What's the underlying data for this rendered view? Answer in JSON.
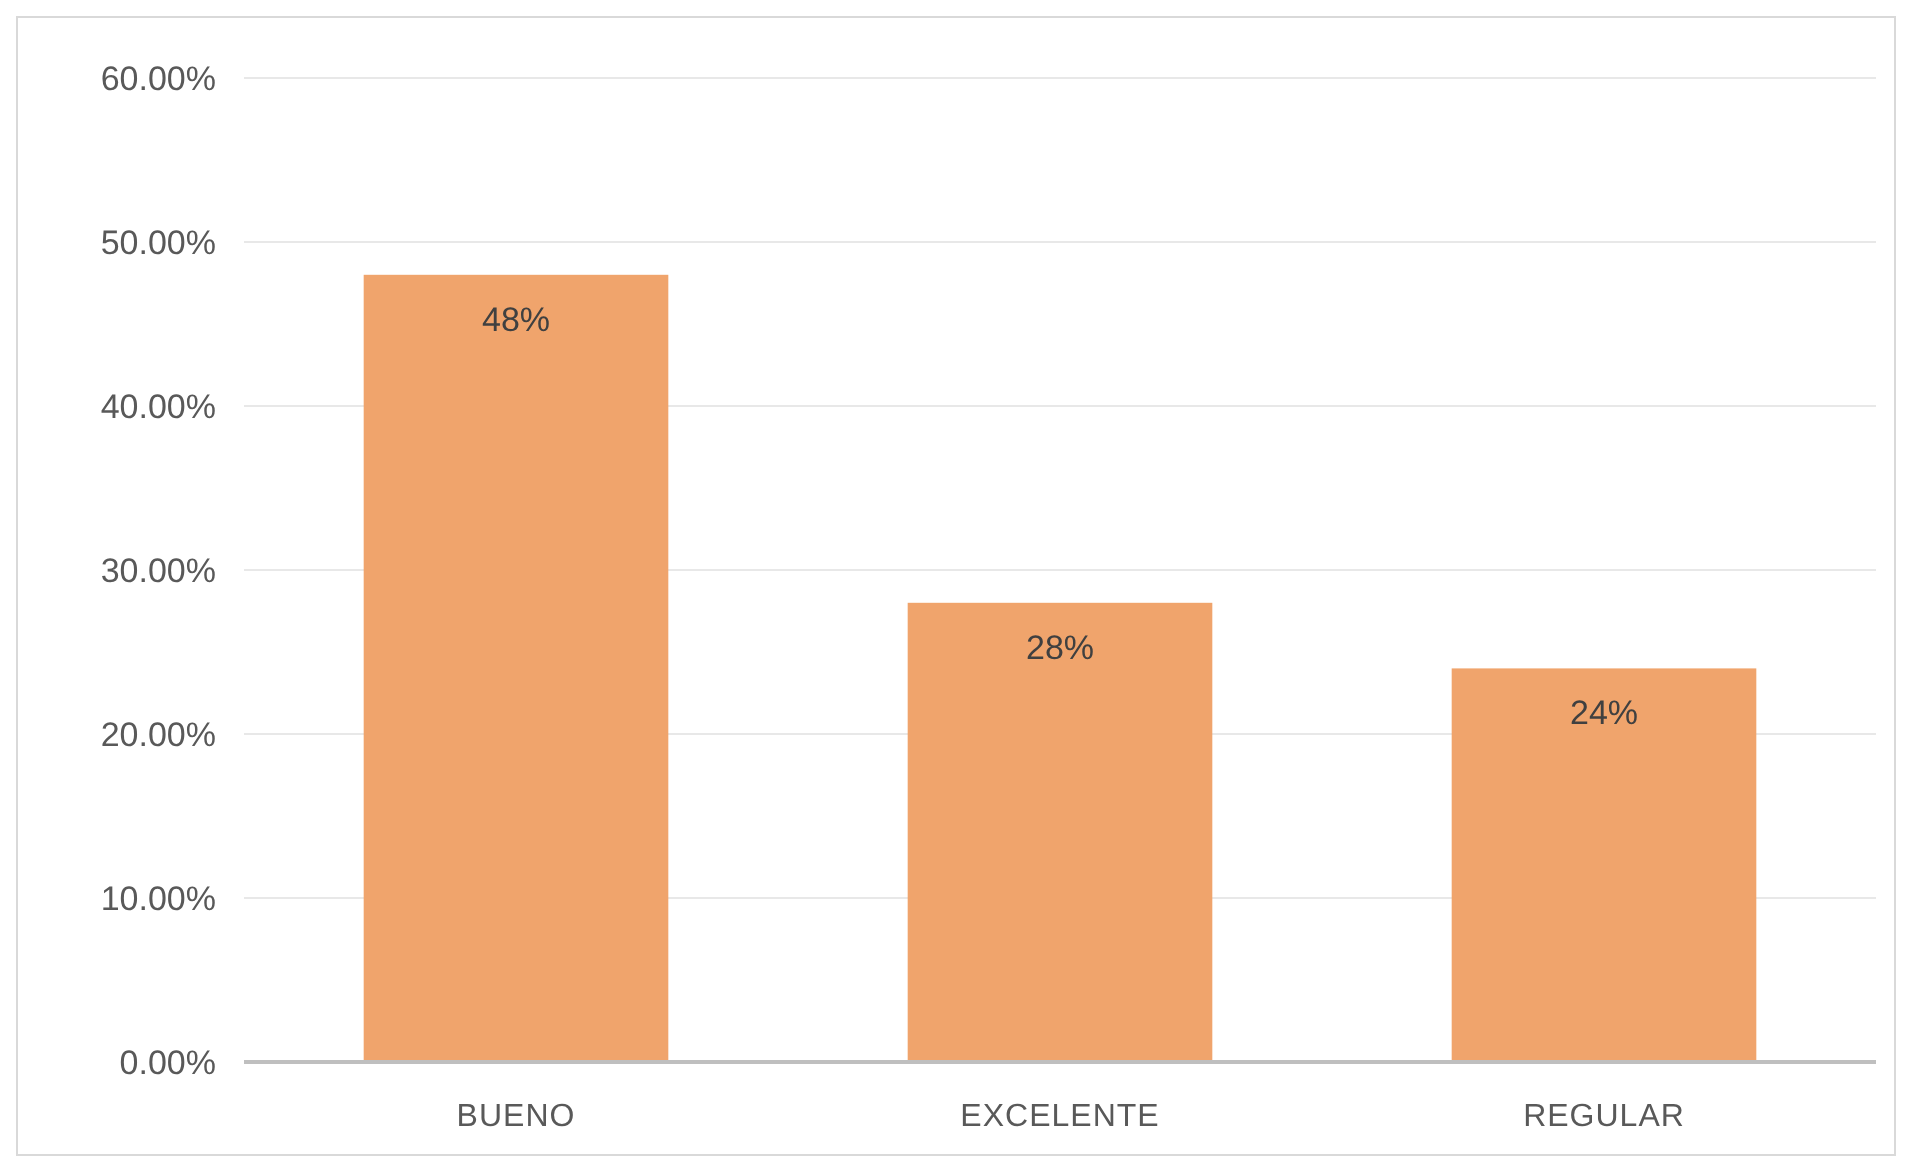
{
  "chart_data": {
    "type": "bar",
    "categories": [
      "BUENO",
      "EXCELENTE",
      "REGULAR"
    ],
    "values": [
      48,
      28,
      24
    ],
    "color": "#f0a46c",
    "value_labels": [
      "48%",
      "28%",
      "24%"
    ],
    "ylim": [
      0,
      60
    ],
    "yticks": [
      {
        "value": 0,
        "label": "0.00%"
      },
      {
        "value": 10,
        "label": "10.00%"
      },
      {
        "value": 20,
        "label": "20.00%"
      },
      {
        "value": 30,
        "label": "30.00%"
      },
      {
        "value": 40,
        "label": "40.00%"
      },
      {
        "value": 50,
        "label": "50.00%"
      },
      {
        "value": 60,
        "label": "60.00%"
      }
    ],
    "grid": "y"
  }
}
